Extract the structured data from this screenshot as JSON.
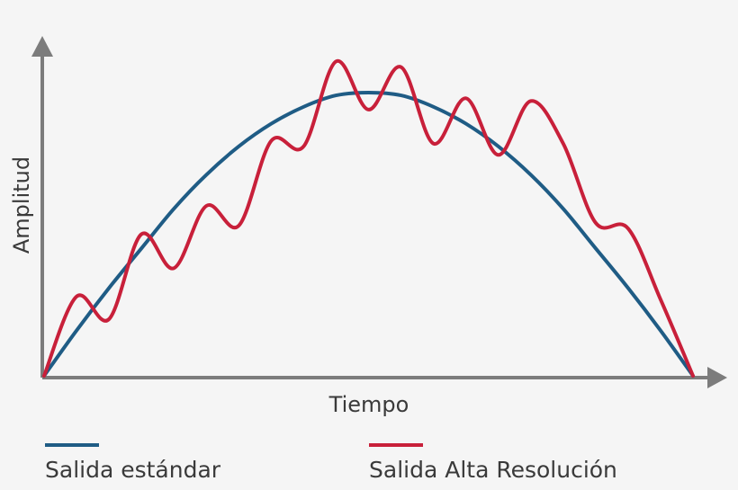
{
  "chart_data": {
    "type": "line",
    "title": "",
    "xlabel": "Tiempo",
    "ylabel": "Amplitud",
    "x_ticks_shown": false,
    "y_ticks_shown": false,
    "grid": false,
    "legend_position": "bottom",
    "x": [
      0,
      0.05,
      0.1,
      0.15,
      0.2,
      0.25,
      0.3,
      0.35,
      0.4,
      0.45,
      0.5,
      0.55,
      0.6,
      0.65,
      0.7,
      0.75,
      0.8,
      0.85,
      0.9,
      0.95,
      1.0
    ],
    "series": [
      {
        "name": "Salida estándar",
        "color": "#1f5c85",
        "values": [
          0,
          0.16,
          0.31,
          0.45,
          0.59,
          0.71,
          0.81,
          0.89,
          0.95,
          0.99,
          1.0,
          0.99,
          0.95,
          0.89,
          0.81,
          0.71,
          0.59,
          0.45,
          0.31,
          0.16,
          0
        ]
      },
      {
        "name": "Salida Alta Resolución",
        "color": "#c8203a",
        "values": [
          0,
          0.28,
          0.2,
          0.5,
          0.38,
          0.6,
          0.53,
          0.83,
          0.81,
          1.11,
          0.94,
          1.09,
          0.82,
          0.98,
          0.78,
          0.97,
          0.82,
          0.54,
          0.52,
          0.27,
          0
        ]
      }
    ]
  },
  "colors": {
    "axis": "#7c7c7c",
    "text": "#3a3a3a",
    "background": "#f5f5f5"
  }
}
